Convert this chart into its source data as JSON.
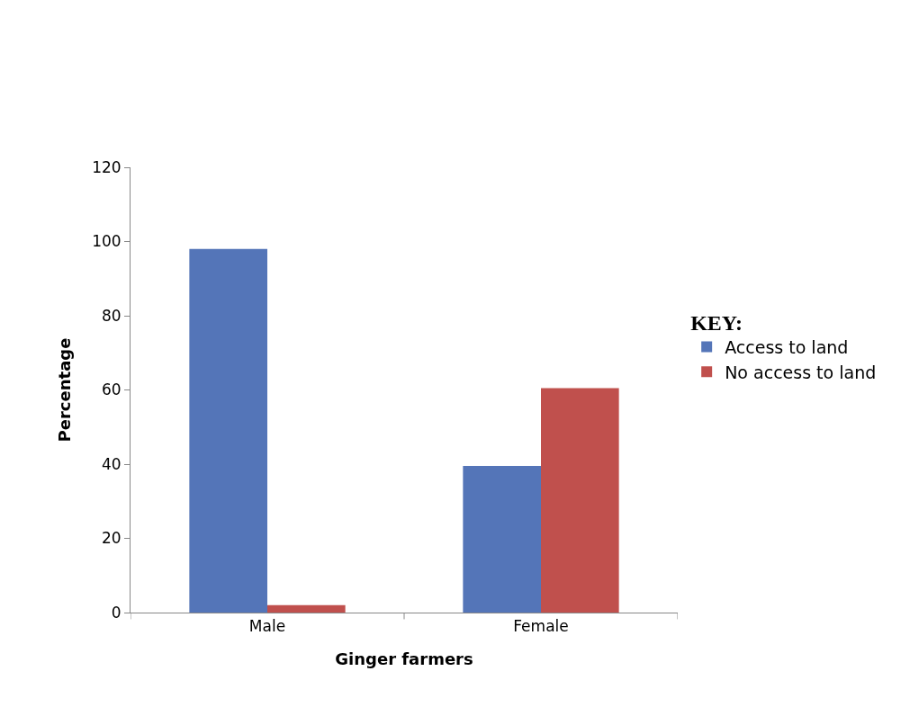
{
  "chart_data": {
    "type": "bar",
    "xlabel": "Ginger farmers",
    "ylabel": "Percentage",
    "legend_title": "KEY:",
    "categories": [
      "Male",
      "Female"
    ],
    "series": [
      {
        "name": "Access to land",
        "color": "#5475b8",
        "values": [
          98,
          39.5
        ]
      },
      {
        "name": "No access to land",
        "color": "#c0504d",
        "values": [
          2,
          60.5
        ]
      }
    ],
    "ylim": [
      0,
      120
    ],
    "yticks": [
      0,
      20,
      40,
      60,
      80,
      100,
      120
    ],
    "grid": false,
    "legend": "right"
  }
}
